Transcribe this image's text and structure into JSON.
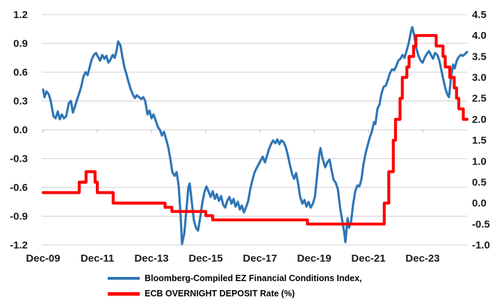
{
  "chart_data": {
    "type": "line",
    "title": "",
    "grid": true,
    "grid_color": "#D6D6D6",
    "text_color": "#1a1a1a",
    "legend_position": "bottom",
    "x_axis": {
      "unit": "months since Dec-2009",
      "tick_labels": [
        "Dec-09",
        "Dec-11",
        "Dec-13",
        "Dec-15",
        "Dec-17",
        "Dec-19",
        "Dec-21",
        "Dec-23"
      ],
      "tick_months": [
        0,
        24,
        48,
        72,
        96,
        120,
        144,
        168
      ],
      "range_months": [
        0,
        190
      ]
    },
    "left_axis": {
      "min": -1.2,
      "max": 1.2,
      "step": 0.3,
      "labels": [
        "1.2",
        "0.9",
        "0.6",
        "0.3",
        "0.0",
        "-0.3",
        "-0.6",
        "-0.9",
        "-1.2"
      ]
    },
    "right_axis": {
      "min": -1.0,
      "max": 4.5,
      "step": 0.5,
      "labels": [
        "4.5",
        "4.0",
        "3.5",
        "3.0",
        "2.5",
        "2.0",
        "1.5",
        "1.0",
        "0.5",
        "0.0",
        "-0.5",
        "-1.0"
      ]
    },
    "series": [
      {
        "name": "Bloomberg-Compiled EZ Financial Conditions Index,",
        "axis": "left",
        "color": "#2E75B6",
        "line_width": 3.2,
        "style": "line",
        "points": [
          [
            0,
            0.42
          ],
          [
            0.6,
            0.34
          ],
          [
            1.5,
            0.4
          ],
          [
            2.5,
            0.37
          ],
          [
            3.4,
            0.3
          ],
          [
            4.6,
            0.14
          ],
          [
            5.5,
            0.12
          ],
          [
            6.5,
            0.19
          ],
          [
            7.4,
            0.11
          ],
          [
            8.3,
            0.16
          ],
          [
            9.2,
            0.12
          ],
          [
            10.2,
            0.14
          ],
          [
            11.4,
            0.28
          ],
          [
            12.3,
            0.3
          ],
          [
            13.2,
            0.18
          ],
          [
            14.2,
            0.25
          ],
          [
            15.1,
            0.32
          ],
          [
            16,
            0.38
          ],
          [
            16.9,
            0.45
          ],
          [
            17.8,
            0.55
          ],
          [
            18.8,
            0.6
          ],
          [
            19.7,
            0.57
          ],
          [
            20.6,
            0.65
          ],
          [
            21.5,
            0.73
          ],
          [
            22.5,
            0.78
          ],
          [
            23.4,
            0.8
          ],
          [
            24.3,
            0.76
          ],
          [
            25.2,
            0.72
          ],
          [
            26.2,
            0.78
          ],
          [
            27.1,
            0.74
          ],
          [
            28,
            0.77
          ],
          [
            28.9,
            0.7
          ],
          [
            29.8,
            0.73
          ],
          [
            30.8,
            0.78
          ],
          [
            31.7,
            0.75
          ],
          [
            32.6,
            0.83
          ],
          [
            33.2,
            0.92
          ],
          [
            34.2,
            0.88
          ],
          [
            35.1,
            0.76
          ],
          [
            36,
            0.65
          ],
          [
            36.9,
            0.58
          ],
          [
            37.8,
            0.5
          ],
          [
            38.8,
            0.42
          ],
          [
            39.7,
            0.37
          ],
          [
            40.6,
            0.33
          ],
          [
            41.5,
            0.36
          ],
          [
            42.5,
            0.34
          ],
          [
            43.4,
            0.32
          ],
          [
            44.3,
            0.34
          ],
          [
            45.2,
            0.3
          ],
          [
            46.2,
            0.16
          ],
          [
            47.1,
            0.2
          ],
          [
            48,
            0.12
          ],
          [
            48.9,
            0.16
          ],
          [
            49.8,
            0.1
          ],
          [
            50.8,
            0.03
          ],
          [
            51.7,
            0.0
          ],
          [
            52.6,
            -0.06
          ],
          [
            53.5,
            -0.02
          ],
          [
            54.5,
            -0.1
          ],
          [
            55.4,
            -0.18
          ],
          [
            56.3,
            -0.3
          ],
          [
            57.2,
            -0.44
          ],
          [
            58.2,
            -0.48
          ],
          [
            59.1,
            -0.44
          ],
          [
            60,
            -0.58
          ],
          [
            60.9,
            -0.9
          ],
          [
            61.5,
            -1.19
          ],
          [
            62.5,
            -1.08
          ],
          [
            63.4,
            -0.85
          ],
          [
            64.3,
            -0.6
          ],
          [
            64.9,
            -0.56
          ],
          [
            65.8,
            -0.75
          ],
          [
            66.8,
            -0.95
          ],
          [
            67.7,
            -1.02
          ],
          [
            68.6,
            -1.05
          ],
          [
            69.5,
            -0.92
          ],
          [
            70.5,
            -0.76
          ],
          [
            71.4,
            -0.65
          ],
          [
            72.3,
            -0.59
          ],
          [
            73.2,
            -0.64
          ],
          [
            74.2,
            -0.7
          ],
          [
            75.1,
            -0.64
          ],
          [
            76,
            -0.72
          ],
          [
            76.9,
            -0.67
          ],
          [
            77.8,
            -0.74
          ],
          [
            78.8,
            -0.69
          ],
          [
            79.7,
            -0.78
          ],
          [
            80.6,
            -0.81
          ],
          [
            81.5,
            -0.74
          ],
          [
            82.5,
            -0.7
          ],
          [
            83.4,
            -0.77
          ],
          [
            84.3,
            -0.72
          ],
          [
            85.2,
            -0.8
          ],
          [
            86.2,
            -0.75
          ],
          [
            87.1,
            -0.83
          ],
          [
            88,
            -0.79
          ],
          [
            88.9,
            -0.86
          ],
          [
            89.8,
            -0.81
          ],
          [
            90.8,
            -0.74
          ],
          [
            91.7,
            -0.62
          ],
          [
            92.6,
            -0.53
          ],
          [
            93.5,
            -0.45
          ],
          [
            94.5,
            -0.4
          ],
          [
            95.4,
            -0.36
          ],
          [
            96.3,
            -0.32
          ],
          [
            97.2,
            -0.28
          ],
          [
            98.2,
            -0.34
          ],
          [
            99.1,
            -0.27
          ],
          [
            100,
            -0.2
          ],
          [
            100.9,
            -0.15
          ],
          [
            101.8,
            -0.11
          ],
          [
            102.8,
            -0.14
          ],
          [
            103.7,
            -0.1
          ],
          [
            104.6,
            -0.15
          ],
          [
            105.5,
            -0.11
          ],
          [
            106.5,
            -0.13
          ],
          [
            107.4,
            -0.18
          ],
          [
            108.3,
            -0.26
          ],
          [
            109.2,
            -0.36
          ],
          [
            110.2,
            -0.46
          ],
          [
            111.1,
            -0.51
          ],
          [
            112,
            -0.45
          ],
          [
            112.9,
            -0.56
          ],
          [
            113.8,
            -0.7
          ],
          [
            114.8,
            -0.77
          ],
          [
            115.7,
            -0.73
          ],
          [
            116.6,
            -0.8
          ],
          [
            117.5,
            -0.75
          ],
          [
            118.5,
            -0.81
          ],
          [
            119.4,
            -0.77
          ],
          [
            120.3,
            -0.7
          ],
          [
            121.2,
            -0.5
          ],
          [
            122.2,
            -0.26
          ],
          [
            122.8,
            -0.19
          ],
          [
            123.7,
            -0.3
          ],
          [
            124.9,
            -0.39
          ],
          [
            125.8,
            -0.34
          ],
          [
            126.8,
            -0.31
          ],
          [
            127.7,
            -0.42
          ],
          [
            128.6,
            -0.52
          ],
          [
            129.5,
            -0.55
          ],
          [
            130.5,
            -0.62
          ],
          [
            131.4,
            -0.8
          ],
          [
            132.3,
            -0.93
          ],
          [
            133.2,
            -1.05
          ],
          [
            133.8,
            -1.17
          ],
          [
            134.8,
            -0.92
          ],
          [
            135.4,
            -1.02
          ],
          [
            136.3,
            -0.96
          ],
          [
            137.2,
            -0.78
          ],
          [
            138.2,
            -0.64
          ],
          [
            139.1,
            -0.58
          ],
          [
            140,
            -0.59
          ],
          [
            140.9,
            -0.52
          ],
          [
            141.8,
            -0.36
          ],
          [
            142.8,
            -0.24
          ],
          [
            143.7,
            -0.16
          ],
          [
            144.6,
            -0.08
          ],
          [
            145.5,
            -0.02
          ],
          [
            146.5,
            0.08
          ],
          [
            147.1,
            0.06
          ],
          [
            148,
            0.22
          ],
          [
            148.9,
            0.26
          ],
          [
            149.8,
            0.38
          ],
          [
            150.8,
            0.45
          ],
          [
            151.7,
            0.46
          ],
          [
            152.6,
            0.52
          ],
          [
            153.5,
            0.59
          ],
          [
            154.5,
            0.63
          ],
          [
            155.4,
            0.62
          ],
          [
            156.3,
            0.66
          ],
          [
            157.2,
            0.72
          ],
          [
            158.2,
            0.74
          ],
          [
            159.1,
            0.78
          ],
          [
            160,
            0.75
          ],
          [
            160.9,
            0.82
          ],
          [
            161.8,
            0.9
          ],
          [
            162.8,
            1.02
          ],
          [
            163.4,
            1.07
          ],
          [
            164.3,
            0.98
          ],
          [
            165.2,
            0.85
          ],
          [
            166.2,
            0.77
          ],
          [
            167.1,
            0.72
          ],
          [
            168,
            0.7
          ],
          [
            168.9,
            0.75
          ],
          [
            169.8,
            0.79
          ],
          [
            170.8,
            0.82
          ],
          [
            171.7,
            0.78
          ],
          [
            172.6,
            0.74
          ],
          [
            173.5,
            0.8
          ],
          [
            174.5,
            0.78
          ],
          [
            175.4,
            0.72
          ],
          [
            176.3,
            0.62
          ],
          [
            177.2,
            0.52
          ],
          [
            178.2,
            0.42
          ],
          [
            179.1,
            0.36
          ],
          [
            179.7,
            0.34
          ],
          [
            180.6,
            0.55
          ],
          [
            181.5,
            0.68
          ],
          [
            182.2,
            0.64
          ],
          [
            183.1,
            0.72
          ],
          [
            184,
            0.76
          ],
          [
            184.9,
            0.78
          ],
          [
            185.8,
            0.77
          ],
          [
            186.8,
            0.79
          ],
          [
            187.7,
            0.81
          ]
        ]
      },
      {
        "name": "ECB OVERNIGHT DEPOSIT Rate (%)",
        "axis": "right",
        "color": "#FF0000",
        "line_width": 4.2,
        "style": "step",
        "points": [
          [
            0,
            0.25
          ],
          [
            16,
            0.5
          ],
          [
            19,
            0.75
          ],
          [
            23,
            0.5
          ],
          [
            24,
            0.25
          ],
          [
            31,
            0
          ],
          [
            54,
            -0.1
          ],
          [
            57,
            -0.2
          ],
          [
            72,
            -0.3
          ],
          [
            75,
            -0.4
          ],
          [
            117,
            -0.5
          ],
          [
            151,
            0
          ],
          [
            153,
            0.75
          ],
          [
            155,
            1.5
          ],
          [
            156,
            2
          ],
          [
            158,
            2.5
          ],
          [
            159,
            3
          ],
          [
            161,
            3.25
          ],
          [
            162,
            3.5
          ],
          [
            164,
            3.75
          ],
          [
            165,
            4
          ],
          [
            174,
            3.75
          ],
          [
            177,
            3.5
          ],
          [
            178,
            3.25
          ],
          [
            180,
            3
          ],
          [
            182,
            2.75
          ],
          [
            183,
            2.5
          ],
          [
            184,
            2.25
          ],
          [
            186,
            2
          ],
          [
            187.7,
            2
          ]
        ]
      }
    ]
  },
  "legend": {
    "items": [
      {
        "label": "Bloomberg-Compiled EZ Financial Conditions Index,",
        "color": "#2E75B6",
        "thickness": 4
      },
      {
        "label": "ECB OVERNIGHT DEPOSIT Rate (%)",
        "color": "#FF0000",
        "thickness": 5
      }
    ]
  }
}
